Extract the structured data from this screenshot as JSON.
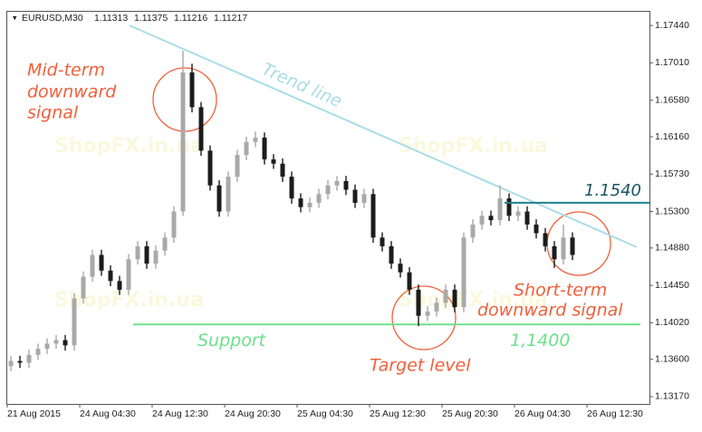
{
  "chart_data": {
    "type": "candlestick",
    "symbol": "EURUSD,M30",
    "header_values": [
      1.11313,
      1.11375,
      1.11216,
      1.11217
    ],
    "xtick_labels": [
      "21 Aug 2015",
      "24 Aug 04:30",
      "24 Aug 12:30",
      "24 Aug 20:30",
      "25 Aug 04:30",
      "25 Aug 12:30",
      "25 Aug 20:30",
      "26 Aug 04:30",
      "26 Aug 12:30"
    ],
    "open": [
      1.1352,
      1.1358,
      1.1356,
      1.1365,
      1.1372,
      1.1378,
      1.1382,
      1.1376,
      1.143,
      1.1455,
      1.148,
      1.1462,
      1.145,
      1.144,
      1.1475,
      1.149,
      1.147,
      1.1485,
      1.15,
      1.153,
      1.169,
      1.165,
      1.16,
      1.156,
      1.153,
      1.157,
      1.1595,
      1.161,
      1.1615,
      1.159,
      1.1585,
      1.157,
      1.1545,
      1.1535,
      1.154,
      1.155,
      1.156,
      1.1565,
      1.1555,
      1.154,
      1.155,
      1.15,
      1.149,
      1.147,
      1.146,
      1.144,
      1.141,
      1.1415,
      1.1425,
      1.144,
      1.142,
      1.15,
      1.1515,
      1.1525,
      1.152,
      1.1545,
      1.1525,
      1.153,
      1.1515,
      1.1505,
      1.149,
      1.1475,
      1.15
    ],
    "high": [
      1.1364,
      1.1364,
      1.1371,
      1.1378,
      1.1384,
      1.1388,
      1.1388,
      1.1436,
      1.1461,
      1.1486,
      1.1486,
      1.1468,
      1.1456,
      1.1481,
      1.1496,
      1.1496,
      1.1491,
      1.1506,
      1.1536,
      1.1715,
      1.17,
      1.1656,
      1.1606,
      1.1566,
      1.1576,
      1.1601,
      1.1616,
      1.1622,
      1.1621,
      1.1596,
      1.1591,
      1.1576,
      1.1551,
      1.1546,
      1.1556,
      1.1566,
      1.1571,
      1.1571,
      1.1561,
      1.1556,
      1.1556,
      1.1506,
      1.1496,
      1.1476,
      1.1466,
      1.1446,
      1.1421,
      1.1431,
      1.1446,
      1.1446,
      1.1506,
      1.1521,
      1.1531,
      1.1531,
      1.156,
      1.1551,
      1.1536,
      1.1536,
      1.1521,
      1.1511,
      1.1496,
      1.1515,
      1.1506
    ],
    "low": [
      1.1346,
      1.135,
      1.135,
      1.1359,
      1.1366,
      1.1372,
      1.137,
      1.137,
      1.1424,
      1.1449,
      1.1456,
      1.1444,
      1.1434,
      1.1434,
      1.1469,
      1.1464,
      1.1464,
      1.1479,
      1.1494,
      1.1525,
      1.1644,
      1.1594,
      1.1554,
      1.1524,
      1.1524,
      1.1564,
      1.1589,
      1.1604,
      1.1584,
      1.1579,
      1.1564,
      1.1539,
      1.1529,
      1.1529,
      1.1534,
      1.1544,
      1.1554,
      1.1549,
      1.1534,
      1.1534,
      1.1494,
      1.1484,
      1.1464,
      1.1454,
      1.1434,
      1.1398,
      1.1404,
      1.1409,
      1.1419,
      1.1414,
      1.1414,
      1.1494,
      1.1509,
      1.1514,
      1.1514,
      1.1519,
      1.1519,
      1.1509,
      1.1499,
      1.1484,
      1.1465,
      1.1469,
      1.1474
    ],
    "close": [
      1.1358,
      1.1356,
      1.1365,
      1.1372,
      1.1378,
      1.1382,
      1.1376,
      1.143,
      1.1455,
      1.148,
      1.1462,
      1.145,
      1.144,
      1.1475,
      1.149,
      1.147,
      1.1485,
      1.15,
      1.153,
      1.169,
      1.165,
      1.16,
      1.156,
      1.153,
      1.157,
      1.1595,
      1.161,
      1.1615,
      1.159,
      1.1585,
      1.157,
      1.1545,
      1.1535,
      1.154,
      1.155,
      1.156,
      1.1565,
      1.1555,
      1.154,
      1.155,
      1.15,
      1.149,
      1.147,
      1.146,
      1.144,
      1.141,
      1.1415,
      1.1425,
      1.144,
      1.142,
      1.15,
      1.1515,
      1.1525,
      1.152,
      1.1545,
      1.1525,
      1.153,
      1.1515,
      1.1505,
      1.149,
      1.1475,
      1.15,
      1.148
    ],
    "up_color": "#a9a9a9",
    "down_color": "#1c1c1c",
    "ylim": [
      1.13086,
      1.17608
    ],
    "yticks": [
      {
        "value": 1.1744,
        "label": "1.17440"
      },
      {
        "value": 1.1701,
        "label": "1.17010"
      },
      {
        "value": 1.1658,
        "label": "1.16580"
      },
      {
        "value": 1.1616,
        "label": "1.16160"
      },
      {
        "value": 1.1573,
        "label": "1.15730"
      },
      {
        "value": 1.153,
        "label": "1.15300"
      },
      {
        "value": 1.1488,
        "label": "1.14880"
      },
      {
        "value": 1.1445,
        "label": "1.14450"
      },
      {
        "value": 1.1402,
        "label": "1.14020"
      },
      {
        "value": 1.136,
        "label": "1.13600"
      },
      {
        "value": 1.1317,
        "label": "1.13170"
      }
    ],
    "trend_line": {
      "label": "Trend line",
      "color": "#a8dde8",
      "start": [
        13.1,
        1.1744
      ],
      "end": [
        69.1,
        1.1489
      ]
    },
    "resistance": {
      "value": 1.154,
      "value_label": "1.1540",
      "color": "#1f7f8f",
      "start": 54.5
    },
    "support": {
      "value": 1.14,
      "value_label": "1,1400",
      "label": "Support",
      "color": "#6ee08c",
      "start": 13.5,
      "end": 69.5
    },
    "annotations": {
      "mid_term": [
        "Mid-term",
        "downward",
        "signal"
      ],
      "target": "Target level",
      "short_term": [
        "Short-term",
        "downward signal"
      ]
    },
    "watermark": "ShopFX.in.ua"
  }
}
